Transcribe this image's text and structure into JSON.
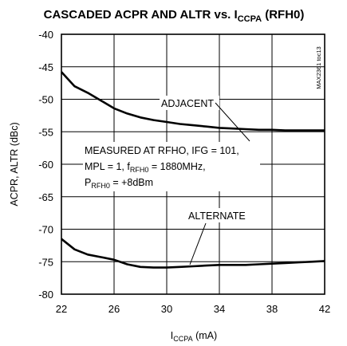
{
  "chart_data": {
    "type": "line",
    "title": {
      "main": "CASCADED ACPR AND ALTR vs. I",
      "sub": "CCPA",
      "tail": " (RFH0)"
    },
    "xlabel": {
      "main": "I",
      "sub": "CCPA",
      "tail": " (mA)"
    },
    "ylabel": "ACPR, ALTR (dBc)",
    "xlim": [
      22,
      42
    ],
    "ylim": [
      -80,
      -40
    ],
    "x_ticks": [
      "22",
      "26",
      "30",
      "34",
      "38",
      "42"
    ],
    "y_ticks": [
      "-40",
      "-45",
      "-50",
      "-55",
      "-60",
      "-65",
      "-70",
      "-75",
      "-80"
    ],
    "grid": true,
    "series": [
      {
        "name": "ADJACENT",
        "color": "#000000",
        "points": [
          [
            22.0,
            -45.8
          ],
          [
            23.0,
            -48.0
          ],
          [
            24.0,
            -49.0
          ],
          [
            25.0,
            -50.2
          ],
          [
            26.0,
            -51.4
          ],
          [
            27.0,
            -52.2
          ],
          [
            28.0,
            -52.8
          ],
          [
            29.0,
            -53.2
          ],
          [
            30.0,
            -53.5
          ],
          [
            31.0,
            -53.8
          ],
          [
            32.0,
            -54.0
          ],
          [
            33.0,
            -54.2
          ],
          [
            34.0,
            -54.4
          ],
          [
            35.0,
            -54.5
          ],
          [
            36.0,
            -54.6
          ],
          [
            37.0,
            -54.7
          ],
          [
            38.0,
            -54.7
          ],
          [
            39.0,
            -54.8
          ],
          [
            40.0,
            -54.8
          ],
          [
            41.0,
            -54.8
          ],
          [
            42.0,
            -54.8
          ]
        ]
      },
      {
        "name": "ALTERNATE",
        "color": "#000000",
        "points": [
          [
            22.0,
            -71.5
          ],
          [
            23.0,
            -73.1
          ],
          [
            24.0,
            -73.9
          ],
          [
            25.0,
            -74.3
          ],
          [
            26.0,
            -74.7
          ],
          [
            27.0,
            -75.4
          ],
          [
            28.0,
            -75.8
          ],
          [
            29.0,
            -75.9
          ],
          [
            30.0,
            -75.9
          ],
          [
            31.0,
            -75.8
          ],
          [
            32.0,
            -75.7
          ],
          [
            33.0,
            -75.6
          ],
          [
            34.0,
            -75.5
          ],
          [
            35.0,
            -75.5
          ],
          [
            36.0,
            -75.5
          ],
          [
            37.0,
            -75.4
          ],
          [
            38.0,
            -75.3
          ],
          [
            39.0,
            -75.2
          ],
          [
            40.0,
            -75.1
          ],
          [
            41.0,
            -75.0
          ],
          [
            42.0,
            -74.9
          ]
        ]
      }
    ],
    "annotations": {
      "adjacent": "ADJACENT",
      "alternate": "ALTERNATE",
      "cond_line1": "MEASURED AT RFHO, IFG = 101,",
      "cond_line2": {
        "pre": "MPL = 1, f",
        "sub": "RFH0",
        "tail": " = 1880MHz,"
      },
      "cond_line3": {
        "pre": "P",
        "sub": "RFH0",
        "tail": " = +8dBm"
      }
    },
    "figure_code": "MAX2361 toc13"
  }
}
